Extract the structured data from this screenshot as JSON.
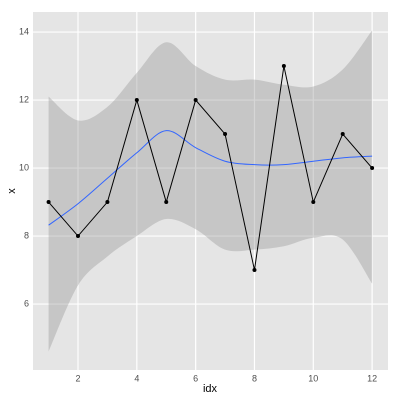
{
  "chart_data": {
    "type": "line",
    "x_label": "idx",
    "y_label": "x",
    "x": [
      1,
      2,
      3,
      4,
      5,
      6,
      7,
      8,
      9,
      10,
      11,
      12
    ],
    "values": [
      9,
      8,
      9,
      12,
      9,
      12,
      11,
      7,
      13,
      9,
      11,
      10
    ],
    "color": "#000000",
    "smooth": {
      "color": "#3366FF",
      "values": [
        8.32,
        8.95,
        9.7,
        10.45,
        11.1,
        10.6,
        10.2,
        10.1,
        10.1,
        10.2,
        10.3,
        10.35
      ],
      "upper": [
        12.1,
        11.4,
        11.8,
        12.8,
        13.7,
        13.0,
        12.6,
        12.6,
        12.45,
        12.4,
        12.9,
        14.05
      ],
      "lower": [
        4.6,
        6.55,
        7.4,
        8.0,
        8.5,
        8.2,
        7.6,
        7.6,
        7.7,
        7.95,
        7.9,
        6.6
      ]
    },
    "xlim": [
      0.47,
      12.54
    ],
    "ylim": [
      4.06,
      14.59
    ],
    "xticks": [
      2,
      4,
      6,
      8,
      10,
      12
    ],
    "yticks": [
      6,
      8,
      10,
      12,
      14
    ],
    "grid": true
  }
}
